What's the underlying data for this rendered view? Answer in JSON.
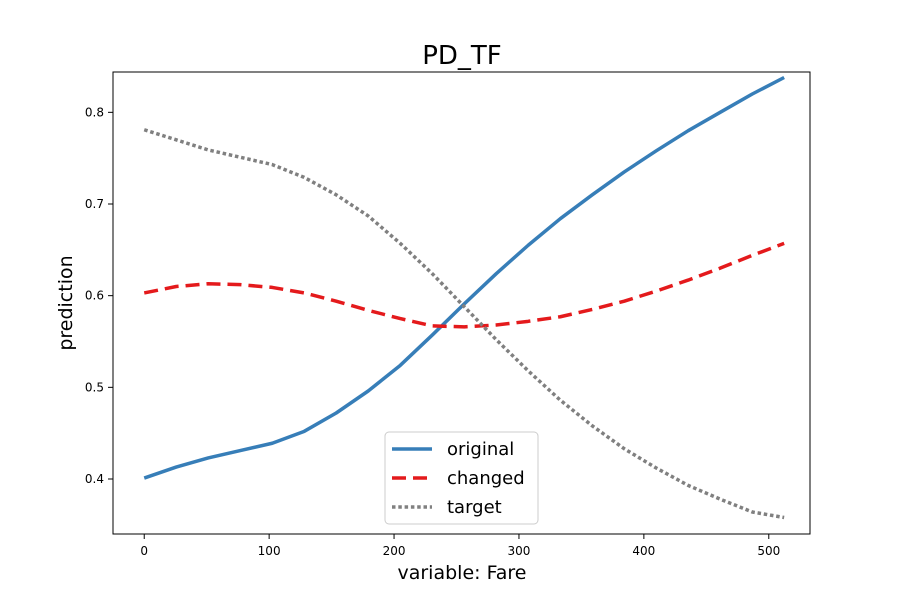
{
  "chart_data": {
    "type": "line",
    "title": "PD_TF",
    "xlabel": "variable: Fare",
    "ylabel": "prediction",
    "xlim": [
      -25,
      533
    ],
    "ylim": [
      0.34,
      0.844
    ],
    "x_ticks": [
      0,
      100,
      200,
      300,
      400,
      500
    ],
    "y_ticks": [
      0.4,
      0.5,
      0.6,
      0.7,
      0.8
    ],
    "grid": false,
    "legend_position": "bottom-center",
    "x": [
      0,
      25.6,
      51.2,
      76.9,
      102.5,
      128.1,
      153.7,
      179.3,
      205,
      230.6,
      256.2,
      281.8,
      307.4,
      333.1,
      358.7,
      384.3,
      409.9,
      435.5,
      461.1,
      486.8,
      512.3
    ],
    "series": [
      {
        "name": "original",
        "color": "#377eb8",
        "style": "solid",
        "values": [
          0.401,
          0.413,
          0.423,
          0.431,
          0.439,
          0.452,
          0.472,
          0.496,
          0.524,
          0.557,
          0.591,
          0.624,
          0.655,
          0.684,
          0.71,
          0.735,
          0.758,
          0.78,
          0.8,
          0.82,
          0.838
        ]
      },
      {
        "name": "changed",
        "color": "#e41a1c",
        "style": "dashed",
        "values": [
          0.603,
          0.61,
          0.613,
          0.612,
          0.609,
          0.603,
          0.594,
          0.584,
          0.575,
          0.567,
          0.566,
          0.568,
          0.572,
          0.577,
          0.585,
          0.594,
          0.605,
          0.617,
          0.63,
          0.644,
          0.657
        ]
      },
      {
        "name": "target",
        "color": "#808080",
        "style": "dotted",
        "values": [
          0.781,
          0.77,
          0.759,
          0.751,
          0.743,
          0.729,
          0.71,
          0.687,
          0.657,
          0.624,
          0.588,
          0.552,
          0.518,
          0.486,
          0.458,
          0.433,
          0.412,
          0.393,
          0.378,
          0.364,
          0.358
        ]
      }
    ]
  }
}
